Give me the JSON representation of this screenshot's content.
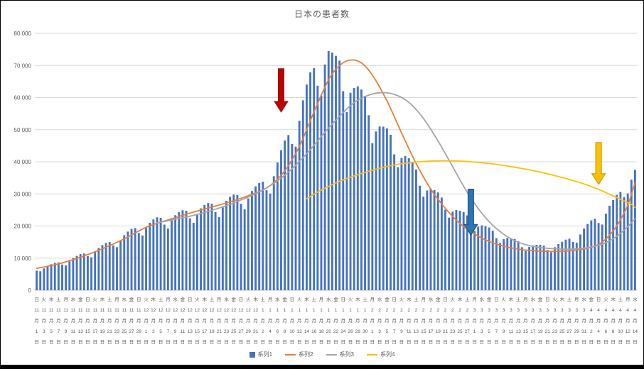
{
  "chart_data": {
    "type": "combo",
    "title": "日本の患者数",
    "xlabel": "",
    "ylabel": "",
    "ylim": [
      0,
      80000
    ],
    "n_days": 165,
    "x_range": [
      "11月1日",
      "4月14日"
    ],
    "grid": "horizontal",
    "legend_position": "bottom",
    "series": [
      {
        "name": "系列1",
        "type": "bar",
        "color": "#4472C4",
        "values": [
          6100,
          5900,
          6800,
          7550,
          8100,
          8500,
          8650,
          8000,
          7750,
          9000,
          10000,
          10700,
          11250,
          11450,
          10600,
          10250,
          11900,
          13150,
          14050,
          14750,
          15000,
          13950,
          13400,
          15550,
          17150,
          18250,
          19100,
          19350,
          17850,
          17050,
          19400,
          21000,
          22050,
          22700,
          22550,
          20450,
          19200,
          21700,
          23350,
          24350,
          24900,
          24750,
          22400,
          21000,
          23700,
          25500,
          26550,
          27150,
          26950,
          24350,
          22800,
          25800,
          27850,
          29100,
          29800,
          29650,
          26900,
          25200,
          28600,
          30900,
          32350,
          33400,
          33800,
          31150,
          30100,
          35500,
          39800,
          43600,
          46650,
          48350,
          45550,
          44700,
          52800,
          59150,
          64050,
          67850,
          69150,
          63700,
          60650,
          70300,
          74500,
          74000,
          73000,
          71500,
          62000,
          55500,
          61500,
          63000,
          63500,
          62500,
          60500,
          54500,
          45800,
          49450,
          51000,
          50950,
          50400,
          48400,
          42300,
          38300,
          41200,
          41800,
          41100,
          39900,
          37600,
          32550,
          29150,
          31050,
          31600,
          31200,
          30450,
          28850,
          25100,
          22600,
          24450,
          25000,
          24750,
          24350,
          23300,
          20450,
          18500,
          19800,
          20200,
          19950,
          19550,
          18550,
          16200,
          14700,
          15900,
          16300,
          16200,
          15950,
          15250,
          13400,
          12250,
          13500,
          13950,
          14150,
          14150,
          13900,
          12550,
          11850,
          13400,
          14400,
          15100,
          15750,
          16050,
          15050,
          14800,
          17350,
          19200,
          20600,
          21750,
          22250,
          20950,
          20450,
          23850,
          26300,
          28100,
          29700,
          30600,
          29000,
          30150,
          34450,
          37500
        ]
      },
      {
        "name": "系列2",
        "type": "line",
        "color": "#ED7D31",
        "points": [
          [
            0,
            6800
          ],
          [
            6,
            8200
          ],
          [
            12,
            10300
          ],
          [
            18,
            12900
          ],
          [
            24,
            16000
          ],
          [
            30,
            19600
          ],
          [
            36,
            21900
          ],
          [
            42,
            24000
          ],
          [
            48,
            25900
          ],
          [
            54,
            27900
          ],
          [
            60,
            30300
          ],
          [
            64,
            32600
          ],
          [
            68,
            37200
          ],
          [
            72,
            44800
          ],
          [
            76,
            55500
          ],
          [
            80,
            65500
          ],
          [
            83,
            70000
          ],
          [
            86,
            71700
          ],
          [
            89,
            70800
          ],
          [
            92,
            67000
          ],
          [
            96,
            59000
          ],
          [
            100,
            49000
          ],
          [
            104,
            39500
          ],
          [
            108,
            31500
          ],
          [
            112,
            25500
          ],
          [
            116,
            20800
          ],
          [
            120,
            17500
          ],
          [
            124,
            15200
          ],
          [
            128,
            13700
          ],
          [
            132,
            12800
          ],
          [
            136,
            12300
          ],
          [
            140,
            12100
          ],
          [
            144,
            12100
          ],
          [
            148,
            12500
          ],
          [
            152,
            13400
          ],
          [
            155,
            15000
          ],
          [
            158,
            18500
          ],
          [
            160,
            22000
          ],
          [
            162,
            26500
          ],
          [
            164,
            33500
          ]
        ]
      },
      {
        "name": "系列3",
        "type": "line",
        "color": "#A5A5A5",
        "points": [
          [
            33,
            21000
          ],
          [
            38,
            22100
          ],
          [
            44,
            23600
          ],
          [
            50,
            25600
          ],
          [
            56,
            28100
          ],
          [
            62,
            31200
          ],
          [
            68,
            35800
          ],
          [
            74,
            42500
          ],
          [
            80,
            50500
          ],
          [
            86,
            57500
          ],
          [
            90,
            60300
          ],
          [
            94,
            61500
          ],
          [
            98,
            61000
          ],
          [
            102,
            58500
          ],
          [
            106,
            53500
          ],
          [
            110,
            46500
          ],
          [
            114,
            38500
          ],
          [
            118,
            30500
          ],
          [
            122,
            24000
          ],
          [
            126,
            19200
          ],
          [
            130,
            16000
          ],
          [
            134,
            14200
          ],
          [
            138,
            13300
          ],
          [
            142,
            12900
          ],
          [
            146,
            12800
          ],
          [
            150,
            13100
          ],
          [
            153,
            13700
          ],
          [
            156,
            14800
          ],
          [
            159,
            16800
          ],
          [
            162,
            19800
          ],
          [
            164,
            22300
          ]
        ]
      },
      {
        "name": "系列4",
        "type": "line",
        "color": "#FFC000",
        "points": [
          [
            74,
            28500
          ],
          [
            78,
            31200
          ],
          [
            82,
            33400
          ],
          [
            86,
            35200
          ],
          [
            90,
            36700
          ],
          [
            94,
            38000
          ],
          [
            98,
            39000
          ],
          [
            102,
            39700
          ],
          [
            106,
            40100
          ],
          [
            110,
            40300
          ],
          [
            114,
            40300
          ],
          [
            118,
            40100
          ],
          [
            122,
            39700
          ],
          [
            126,
            39200
          ],
          [
            130,
            38500
          ],
          [
            134,
            37700
          ],
          [
            138,
            36800
          ],
          [
            142,
            35700
          ],
          [
            146,
            34500
          ],
          [
            150,
            33100
          ],
          [
            154,
            31400
          ],
          [
            158,
            29400
          ],
          [
            161,
            27800
          ],
          [
            163,
            26700
          ],
          [
            164,
            25800
          ]
        ]
      }
    ],
    "annotations": [
      {
        "name": "red-down-arrow",
        "shape": "down-arrow",
        "color": "#C00000",
        "stroke": "#8B1A1A",
        "day": 67,
        "from": 69000,
        "to": 55500
      },
      {
        "name": "blue-down-arrow",
        "shape": "down-arrow",
        "color": "#2E75B6",
        "stroke": "#1F4E79",
        "day": 119,
        "from": 31500,
        "to": 17200
      },
      {
        "name": "yellow-down-arrow",
        "shape": "down-arrow",
        "color": "#FFC000",
        "stroke": "#BF9000",
        "day": 154,
        "from": 46000,
        "to": 33000
      }
    ]
  },
  "y_axis": {
    "min": 0,
    "max": 80000,
    "step": 10000,
    "tick_labels": [
      "0",
      "10 000",
      "20 000",
      "30 000",
      "40 000",
      "50 000",
      "60 000",
      "70 000",
      "80 000"
    ]
  },
  "x_axis": {
    "month_suffix": "月",
    "day_suffix": "日",
    "weekdays": [
      "日",
      "火",
      "木",
      "土",
      "月",
      "水",
      "金",
      "日",
      "火",
      "木",
      "土",
      "月",
      "水",
      "金",
      "日",
      "火",
      "木",
      "土",
      "月",
      "水",
      "金",
      "日",
      "火",
      "木",
      "土",
      "月",
      "水",
      "金",
      "日",
      "火",
      "木",
      "土",
      "月",
      "水",
      "金",
      "日",
      "火",
      "木",
      "土",
      "月",
      "水",
      "金",
      "日",
      "火",
      "木",
      "土",
      "月",
      "水",
      "金",
      "日",
      "火",
      "木",
      "土",
      "月",
      "水",
      "金",
      "日",
      "火",
      "木",
      "土",
      "月",
      "水",
      "金",
      "日",
      "火",
      "木",
      "土",
      "月",
      "水",
      "金",
      "日",
      "火",
      "木",
      "土",
      "月",
      "水",
      "金",
      "日",
      "火",
      "木",
      "土",
      "月",
      "水"
    ],
    "months": [
      "11",
      "11",
      "11",
      "11",
      "11",
      "11",
      "11",
      "11",
      "11",
      "11",
      "11",
      "11",
      "11",
      "11",
      "11",
      "12",
      "12",
      "12",
      "12",
      "12",
      "12",
      "12",
      "12",
      "12",
      "12",
      "12",
      "12",
      "12",
      "12",
      "12",
      "12",
      "1",
      "1",
      "1",
      "1",
      "1",
      "1",
      "1",
      "1",
      "1",
      "1",
      "1",
      "1",
      "1",
      "1",
      "1",
      "2",
      "2",
      "2",
      "2",
      "2",
      "2",
      "2",
      "2",
      "2",
      "2",
      "2",
      "2",
      "2",
      "2",
      "3",
      "3",
      "3",
      "3",
      "3",
      "3",
      "3",
      "3",
      "3",
      "3",
      "3",
      "3",
      "3",
      "3",
      "3",
      "3",
      "4",
      "4",
      "4",
      "4",
      "4",
      "4",
      "4"
    ],
    "days": [
      1,
      3,
      5,
      7,
      9,
      11,
      13,
      15,
      17,
      19,
      21,
      23,
      25,
      27,
      29,
      1,
      3,
      5,
      7,
      9,
      11,
      13,
      15,
      17,
      19,
      21,
      23,
      25,
      27,
      29,
      31,
      2,
      4,
      6,
      8,
      10,
      12,
      14,
      16,
      18,
      20,
      22,
      24,
      26,
      28,
      30,
      1,
      3,
      5,
      7,
      9,
      11,
      13,
      15,
      17,
      19,
      21,
      23,
      25,
      27,
      1,
      3,
      5,
      7,
      9,
      11,
      13,
      15,
      17,
      19,
      21,
      23,
      25,
      27,
      29,
      31,
      2,
      4,
      6,
      8,
      10,
      12,
      14
    ]
  },
  "legend": {
    "items": [
      {
        "label": "系列1",
        "color": "#4472C4",
        "type": "bar"
      },
      {
        "label": "系列2",
        "color": "#ED7D31",
        "type": "line"
      },
      {
        "label": "系列3",
        "color": "#A5A5A5",
        "type": "line"
      },
      {
        "label": "系列4",
        "color": "#FFC000",
        "type": "line"
      }
    ]
  },
  "colors": {
    "title_text": "#595959",
    "axis_text": "#595959",
    "gridline": "#D9D9D9",
    "axis_line": "#BFBFBF",
    "background": "#FFFFFF",
    "border": "#000000"
  }
}
